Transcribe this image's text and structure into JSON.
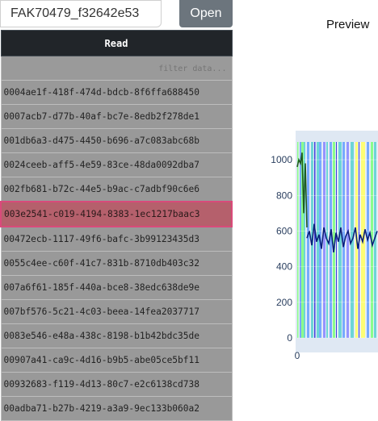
{
  "toolbar": {
    "file_value": "FAK70479_f32642e53",
    "open_label": "Open"
  },
  "preview": {
    "title": "Preview"
  },
  "table": {
    "header": "Read",
    "filter_placeholder": "filter data...",
    "selected_index": 5,
    "rows": [
      "0004ae1f-418f-474d-bdcb-8f6ffa688450",
      "0007acb7-d77b-40af-bc7e-8edb2f278de1",
      "001db6a3-d475-4450-b696-a7c083abc68b",
      "0024ceeb-aff5-4e59-83ce-48da0092dba7",
      "002fb681-b72c-44e5-b9ac-c7adbf90c6e6",
      "003e2541-c019-4194-8383-1ec1217baac3",
      "00472ecb-1117-49f6-bafc-3b99123435d3",
      "0055c4ee-c60f-41c7-831b-8710db403c32",
      "007a6f61-185f-440a-bce8-38edc638de9e",
      "007bf576-5c21-4c03-beea-14fea2037717",
      "0083e546-e48a-438c-8198-b1b42bdc35de",
      "00907a41-ca9c-4d16-b9b5-abe05ce5bf11",
      "00932683-f119-4d13-80c7-e2c6138cd738",
      "00adba71-b27b-4219-a3a9-9ec133b060a2"
    ]
  },
  "chart_data": {
    "type": "line",
    "title": "",
    "xlabel": "",
    "ylabel": "",
    "y_ticks": [
      "0",
      "200",
      "400",
      "600",
      "800",
      "1000"
    ],
    "x_ticks": [
      "0"
    ],
    "ylim": [
      0,
      1100
    ],
    "xlim": [
      0,
      100
    ],
    "band_colors": [
      "#7fff7f",
      "#6aa3ff",
      "#5fd3d3",
      "#8b8bff",
      "#ffff66",
      "#2a2ad8"
    ],
    "bands": [
      {
        "x0": 0,
        "x1": 1.5,
        "c": 0
      },
      {
        "x0": 3,
        "x1": 5,
        "c": 1
      },
      {
        "x0": 5,
        "x1": 8,
        "c": 0
      },
      {
        "x0": 8,
        "x1": 10,
        "c": 2
      },
      {
        "x0": 12,
        "x1": 15,
        "c": 1
      },
      {
        "x0": 17,
        "x1": 20,
        "c": 2
      },
      {
        "x0": 21,
        "x1": 22.5,
        "c": 5
      },
      {
        "x0": 24,
        "x1": 27,
        "c": 2
      },
      {
        "x0": 27,
        "x1": 30,
        "c": 1
      },
      {
        "x0": 32,
        "x1": 35,
        "c": 3
      },
      {
        "x0": 36,
        "x1": 38,
        "c": 2
      },
      {
        "x0": 40,
        "x1": 43,
        "c": 1
      },
      {
        "x0": 44,
        "x1": 47,
        "c": 0
      },
      {
        "x0": 48,
        "x1": 49,
        "c": 5
      },
      {
        "x0": 51,
        "x1": 55,
        "c": 2
      },
      {
        "x0": 56,
        "x1": 59,
        "c": 1
      },
      {
        "x0": 61,
        "x1": 64,
        "c": 3
      },
      {
        "x0": 66,
        "x1": 70,
        "c": 2
      },
      {
        "x0": 72,
        "x1": 75,
        "c": 4
      },
      {
        "x0": 76,
        "x1": 77,
        "c": 5
      },
      {
        "x0": 79,
        "x1": 84,
        "c": 4
      },
      {
        "x0": 86,
        "x1": 89,
        "c": 1
      },
      {
        "x0": 91,
        "x1": 94,
        "c": 0
      },
      {
        "x0": 95,
        "x1": 98,
        "c": 2
      }
    ],
    "series": [
      {
        "color": "#1f5a1f",
        "x": [
          0,
          2,
          4,
          6,
          8,
          10,
          12
        ],
        "y": [
          960,
          1000,
          980,
          1040,
          700,
          980,
          620
        ]
      },
      {
        "color": "#0a1f7a",
        "x": [
          12,
          15,
          18,
          21,
          24,
          27,
          30,
          33,
          36,
          39,
          42,
          45,
          48,
          51,
          54,
          57,
          60,
          63,
          66,
          69,
          72,
          75,
          78,
          81,
          84,
          87,
          90,
          93,
          96,
          99
        ],
        "y": [
          560,
          600,
          520,
          640,
          540,
          580,
          500,
          620,
          560,
          530,
          610,
          480,
          590,
          540,
          620,
          510,
          570,
          600,
          530,
          560,
          620,
          500,
          580,
          540,
          610,
          550,
          590,
          520,
          560,
          600
        ]
      }
    ]
  }
}
